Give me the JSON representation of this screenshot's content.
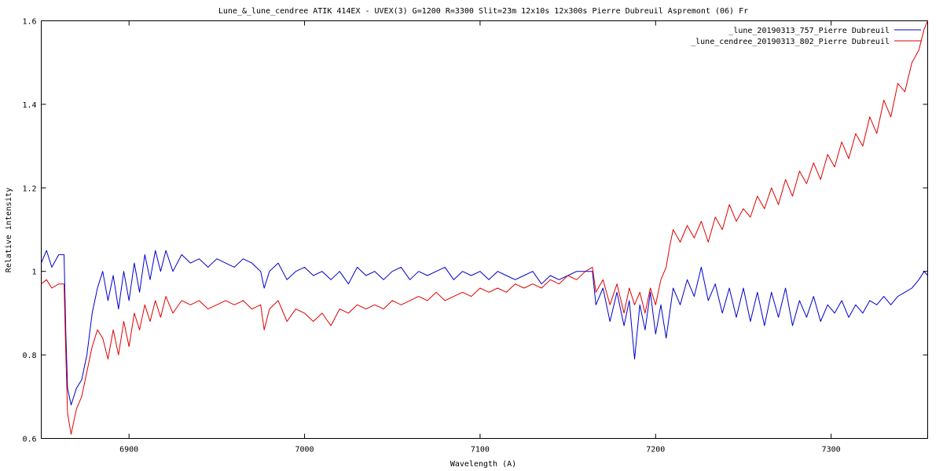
{
  "chart_data": {
    "type": "line",
    "title": "Lune_&_lune_cendree  ATIK 414EX - UVEX(3)  G=1200  R=3300  Slit=23m    12x10s 12x300s    Pierre Dubreuil  Aspremont (06) Fr",
    "xlabel": "Wavelength (A)",
    "ylabel": "Relative intensity",
    "xlim": [
      6850,
      7355
    ],
    "ylim": [
      0.6,
      1.6
    ],
    "x_ticks": [
      "6900",
      "7000",
      "7100",
      "7200",
      "7300"
    ],
    "x_tick_values": [
      6900,
      7000,
      7100,
      7200,
      7300
    ],
    "y_ticks": [
      "0.6",
      "0.8",
      "1",
      "1.2",
      "1.4",
      "1.6"
    ],
    "y_tick_values": [
      0.6,
      0.8,
      1.0,
      1.2,
      1.4,
      1.6
    ],
    "grid": false,
    "legend_position": "top-right",
    "series": [
      {
        "name": "_lune_20190313_757_Pierre Dubreuil",
        "color": "#0000cc",
        "points": [
          [
            6850,
            1.02
          ],
          [
            6853,
            1.05
          ],
          [
            6856,
            1.01
          ],
          [
            6860,
            1.04
          ],
          [
            6863,
            1.04
          ],
          [
            6864,
            0.85
          ],
          [
            6865,
            0.72
          ],
          [
            6867,
            0.68
          ],
          [
            6870,
            0.72
          ],
          [
            6873,
            0.74
          ],
          [
            6876,
            0.8
          ],
          [
            6879,
            0.9
          ],
          [
            6882,
            0.96
          ],
          [
            6885,
            1.0
          ],
          [
            6888,
            0.93
          ],
          [
            6891,
            0.99
          ],
          [
            6894,
            0.91
          ],
          [
            6897,
            1.0
          ],
          [
            6900,
            0.93
          ],
          [
            6903,
            1.02
          ],
          [
            6906,
            0.95
          ],
          [
            6909,
            1.04
          ],
          [
            6912,
            0.98
          ],
          [
            6915,
            1.05
          ],
          [
            6918,
            1.0
          ],
          [
            6921,
            1.05
          ],
          [
            6925,
            1.0
          ],
          [
            6930,
            1.04
          ],
          [
            6935,
            1.02
          ],
          [
            6940,
            1.03
          ],
          [
            6945,
            1.01
          ],
          [
            6950,
            1.03
          ],
          [
            6955,
            1.02
          ],
          [
            6960,
            1.01
          ],
          [
            6965,
            1.03
          ],
          [
            6970,
            1.02
          ],
          [
            6975,
            1.0
          ],
          [
            6977,
            0.96
          ],
          [
            6980,
            1.0
          ],
          [
            6985,
            1.02
          ],
          [
            6990,
            0.98
          ],
          [
            6995,
            1.0
          ],
          [
            7000,
            1.01
          ],
          [
            7005,
            0.99
          ],
          [
            7010,
            1.0
          ],
          [
            7015,
            0.98
          ],
          [
            7020,
            1.0
          ],
          [
            7025,
            0.97
          ],
          [
            7030,
            1.01
          ],
          [
            7035,
            0.99
          ],
          [
            7040,
            1.0
          ],
          [
            7045,
            0.98
          ],
          [
            7050,
            1.0
          ],
          [
            7055,
            1.01
          ],
          [
            7060,
            0.98
          ],
          [
            7065,
            1.0
          ],
          [
            7070,
            0.99
          ],
          [
            7075,
            1.0
          ],
          [
            7080,
            1.01
          ],
          [
            7085,
            0.98
          ],
          [
            7090,
            1.0
          ],
          [
            7095,
            0.99
          ],
          [
            7100,
            1.0
          ],
          [
            7105,
            0.98
          ],
          [
            7110,
            1.0
          ],
          [
            7115,
            0.99
          ],
          [
            7120,
            0.98
          ],
          [
            7125,
            0.99
          ],
          [
            7130,
            1.0
          ],
          [
            7135,
            0.97
          ],
          [
            7140,
            0.99
          ],
          [
            7145,
            0.98
          ],
          [
            7150,
            0.99
          ],
          [
            7155,
            1.0
          ],
          [
            7160,
            1.0
          ],
          [
            7164,
            1.0
          ],
          [
            7166,
            0.92
          ],
          [
            7170,
            0.96
          ],
          [
            7174,
            0.88
          ],
          [
            7178,
            0.95
          ],
          [
            7182,
            0.87
          ],
          [
            7185,
            0.93
          ],
          [
            7188,
            0.79
          ],
          [
            7191,
            0.92
          ],
          [
            7194,
            0.86
          ],
          [
            7197,
            0.95
          ],
          [
            7200,
            0.85
          ],
          [
            7203,
            0.92
          ],
          [
            7206,
            0.84
          ],
          [
            7210,
            0.96
          ],
          [
            7214,
            0.92
          ],
          [
            7218,
            0.98
          ],
          [
            7222,
            0.94
          ],
          [
            7226,
            1.01
          ],
          [
            7230,
            0.93
          ],
          [
            7234,
            0.97
          ],
          [
            7238,
            0.9
          ],
          [
            7242,
            0.96
          ],
          [
            7246,
            0.89
          ],
          [
            7250,
            0.96
          ],
          [
            7254,
            0.88
          ],
          [
            7258,
            0.95
          ],
          [
            7262,
            0.87
          ],
          [
            7266,
            0.95
          ],
          [
            7270,
            0.89
          ],
          [
            7274,
            0.96
          ],
          [
            7278,
            0.87
          ],
          [
            7282,
            0.93
          ],
          [
            7286,
            0.89
          ],
          [
            7290,
            0.94
          ],
          [
            7294,
            0.88
          ],
          [
            7298,
            0.92
          ],
          [
            7302,
            0.9
          ],
          [
            7306,
            0.93
          ],
          [
            7310,
            0.89
          ],
          [
            7314,
            0.92
          ],
          [
            7318,
            0.9
          ],
          [
            7322,
            0.93
          ],
          [
            7326,
            0.92
          ],
          [
            7330,
            0.94
          ],
          [
            7334,
            0.92
          ],
          [
            7338,
            0.94
          ],
          [
            7342,
            0.95
          ],
          [
            7346,
            0.96
          ],
          [
            7350,
            0.98
          ],
          [
            7353,
            1.0
          ],
          [
            7355,
            0.99
          ]
        ]
      },
      {
        "name": "_lune_cendree_20190313_802_Pierre Dubreuil",
        "color": "#e00000",
        "points": [
          [
            6850,
            0.97
          ],
          [
            6853,
            0.98
          ],
          [
            6856,
            0.96
          ],
          [
            6860,
            0.97
          ],
          [
            6863,
            0.97
          ],
          [
            6864,
            0.8
          ],
          [
            6865,
            0.66
          ],
          [
            6867,
            0.61
          ],
          [
            6870,
            0.67
          ],
          [
            6873,
            0.7
          ],
          [
            6876,
            0.76
          ],
          [
            6879,
            0.82
          ],
          [
            6882,
            0.86
          ],
          [
            6885,
            0.84
          ],
          [
            6888,
            0.79
          ],
          [
            6891,
            0.86
          ],
          [
            6894,
            0.8
          ],
          [
            6897,
            0.88
          ],
          [
            6900,
            0.82
          ],
          [
            6903,
            0.9
          ],
          [
            6906,
            0.86
          ],
          [
            6909,
            0.92
          ],
          [
            6912,
            0.88
          ],
          [
            6915,
            0.93
          ],
          [
            6918,
            0.89
          ],
          [
            6921,
            0.94
          ],
          [
            6925,
            0.9
          ],
          [
            6930,
            0.93
          ],
          [
            6935,
            0.92
          ],
          [
            6940,
            0.93
          ],
          [
            6945,
            0.91
          ],
          [
            6950,
            0.92
          ],
          [
            6955,
            0.93
          ],
          [
            6960,
            0.92
          ],
          [
            6965,
            0.93
          ],
          [
            6970,
            0.91
          ],
          [
            6975,
            0.92
          ],
          [
            6977,
            0.86
          ],
          [
            6980,
            0.91
          ],
          [
            6985,
            0.93
          ],
          [
            6990,
            0.88
          ],
          [
            6995,
            0.91
          ],
          [
            7000,
            0.9
          ],
          [
            7005,
            0.88
          ],
          [
            7010,
            0.9
          ],
          [
            7015,
            0.87
          ],
          [
            7020,
            0.91
          ],
          [
            7025,
            0.9
          ],
          [
            7030,
            0.92
          ],
          [
            7035,
            0.91
          ],
          [
            7040,
            0.92
          ],
          [
            7045,
            0.91
          ],
          [
            7050,
            0.93
          ],
          [
            7055,
            0.92
          ],
          [
            7060,
            0.93
          ],
          [
            7065,
            0.94
          ],
          [
            7070,
            0.93
          ],
          [
            7075,
            0.95
          ],
          [
            7080,
            0.93
          ],
          [
            7085,
            0.94
          ],
          [
            7090,
            0.95
          ],
          [
            7095,
            0.94
          ],
          [
            7100,
            0.96
          ],
          [
            7105,
            0.95
          ],
          [
            7110,
            0.96
          ],
          [
            7115,
            0.95
          ],
          [
            7120,
            0.97
          ],
          [
            7125,
            0.96
          ],
          [
            7130,
            0.97
          ],
          [
            7135,
            0.96
          ],
          [
            7140,
            0.98
          ],
          [
            7145,
            0.97
          ],
          [
            7150,
            0.99
          ],
          [
            7155,
            0.98
          ],
          [
            7160,
            1.0
          ],
          [
            7164,
            1.01
          ],
          [
            7166,
            0.95
          ],
          [
            7170,
            0.98
          ],
          [
            7174,
            0.92
          ],
          [
            7178,
            0.97
          ],
          [
            7182,
            0.9
          ],
          [
            7185,
            0.96
          ],
          [
            7188,
            0.92
          ],
          [
            7191,
            0.95
          ],
          [
            7194,
            0.9
          ],
          [
            7197,
            0.96
          ],
          [
            7200,
            0.92
          ],
          [
            7203,
            0.98
          ],
          [
            7206,
            1.01
          ],
          [
            7208,
            1.06
          ],
          [
            7210,
            1.1
          ],
          [
            7214,
            1.07
          ],
          [
            7218,
            1.11
          ],
          [
            7222,
            1.08
          ],
          [
            7226,
            1.12
          ],
          [
            7230,
            1.07
          ],
          [
            7234,
            1.13
          ],
          [
            7238,
            1.1
          ],
          [
            7242,
            1.16
          ],
          [
            7246,
            1.12
          ],
          [
            7250,
            1.15
          ],
          [
            7254,
            1.13
          ],
          [
            7258,
            1.18
          ],
          [
            7262,
            1.15
          ],
          [
            7266,
            1.2
          ],
          [
            7270,
            1.16
          ],
          [
            7274,
            1.22
          ],
          [
            7278,
            1.18
          ],
          [
            7282,
            1.24
          ],
          [
            7286,
            1.21
          ],
          [
            7290,
            1.26
          ],
          [
            7294,
            1.22
          ],
          [
            7298,
            1.28
          ],
          [
            7302,
            1.25
          ],
          [
            7306,
            1.31
          ],
          [
            7310,
            1.27
          ],
          [
            7314,
            1.33
          ],
          [
            7318,
            1.3
          ],
          [
            7322,
            1.37
          ],
          [
            7326,
            1.33
          ],
          [
            7330,
            1.41
          ],
          [
            7334,
            1.37
          ],
          [
            7338,
            1.45
          ],
          [
            7342,
            1.43
          ],
          [
            7346,
            1.5
          ],
          [
            7350,
            1.53
          ],
          [
            7353,
            1.58
          ],
          [
            7355,
            1.6
          ]
        ]
      }
    ]
  }
}
